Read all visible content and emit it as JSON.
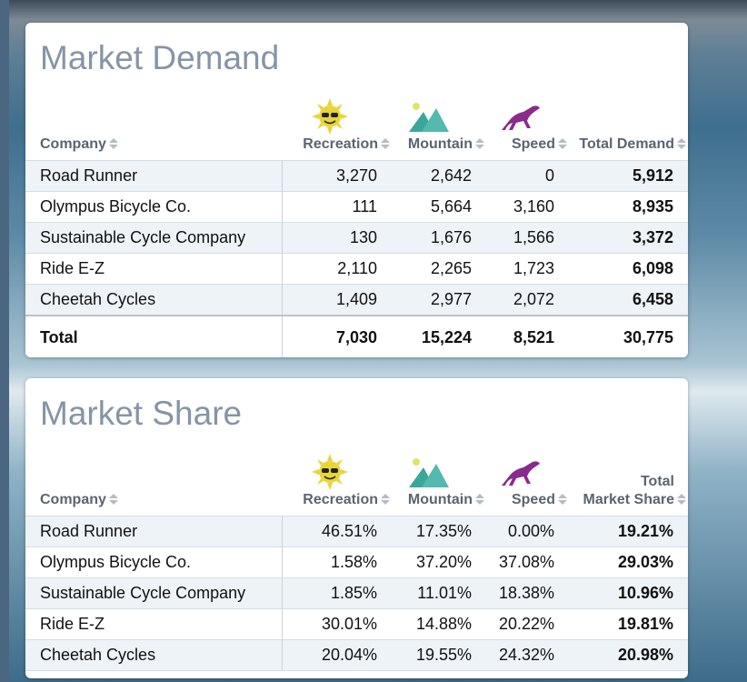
{
  "demand": {
    "title": "Market Demand",
    "columns": [
      "Company",
      "Recreation",
      "Mountain",
      "Speed",
      "Total Demand"
    ],
    "rows": [
      [
        "Road Runner",
        "3,270",
        "2,642",
        "0",
        "5,912"
      ],
      [
        "Olympus Bicycle Co.",
        "111",
        "5,664",
        "3,160",
        "8,935"
      ],
      [
        "Sustainable Cycle Company",
        "130",
        "1,676",
        "1,566",
        "3,372"
      ],
      [
        "Ride E-Z",
        "2,110",
        "2,265",
        "1,723",
        "6,098"
      ],
      [
        "Cheetah Cycles",
        "1,409",
        "2,977",
        "2,072",
        "6,458"
      ]
    ],
    "total": [
      "Total",
      "7,030",
      "15,224",
      "8,521",
      "30,775"
    ]
  },
  "share": {
    "title": "Market Share",
    "columns": [
      "Company",
      "Recreation",
      "Mountain",
      "Speed",
      [
        "Total",
        "Market Share"
      ]
    ],
    "rows": [
      [
        "Road Runner",
        "46.51%",
        "17.35%",
        "0.00%",
        "19.21%"
      ],
      [
        "Olympus Bicycle Co.",
        "1.58%",
        "37.20%",
        "37.08%",
        "29.03%"
      ],
      [
        "Sustainable Cycle Company",
        "1.85%",
        "11.01%",
        "18.38%",
        "10.96%"
      ],
      [
        "Ride E-Z",
        "30.01%",
        "14.88%",
        "20.22%",
        "19.81%"
      ],
      [
        "Cheetah Cycles",
        "20.04%",
        "19.55%",
        "24.32%",
        "20.98%"
      ]
    ]
  }
}
